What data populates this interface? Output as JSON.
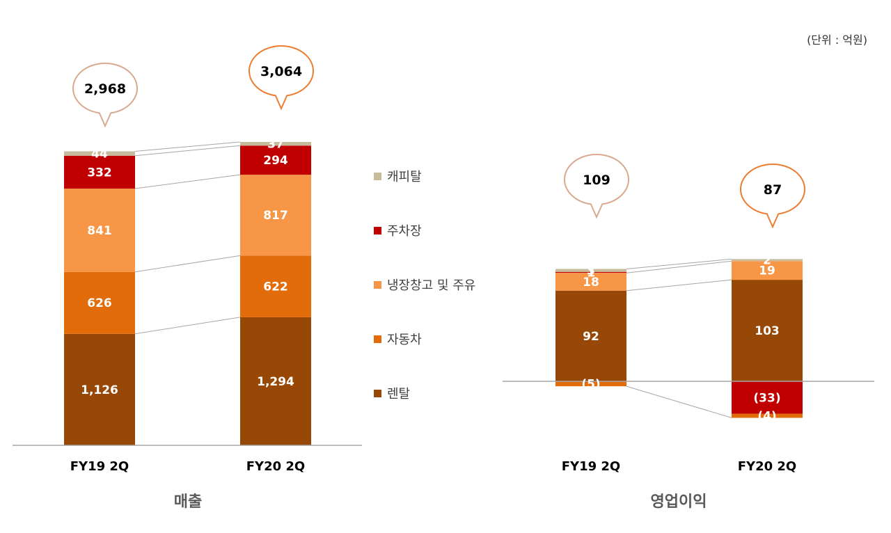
{
  "unit_label": "(단위 : 억원)",
  "colors": {
    "capital": "#c6bc9c",
    "parking": "#c00000",
    "fridge": "#f79646",
    "auto": "#e36c0a",
    "rental": "#984806",
    "bubble_prev": "#d9a98f",
    "bubble_curr": "#ed7d31",
    "axis": "#a6a6a6",
    "connector": "#a6a6a6"
  },
  "legend": [
    {
      "key": "capital",
      "label": "캐피탈"
    },
    {
      "key": "parking",
      "label": "주차장"
    },
    {
      "key": "fridge",
      "label": "냉장창고 및 주유"
    },
    {
      "key": "auto",
      "label": "자동차"
    },
    {
      "key": "rental",
      "label": "렌탈"
    }
  ],
  "chart_data": [
    {
      "type": "bar",
      "stacked": true,
      "title": "매출",
      "categories": [
        "FY19 2Q",
        "FY20 2Q"
      ],
      "totals": [
        "2,968",
        "3,064"
      ],
      "series": [
        {
          "key": "rental",
          "name": "렌탈",
          "values": [
            1126,
            1294
          ],
          "labels": [
            "1,126",
            "1,294"
          ]
        },
        {
          "key": "auto",
          "name": "자동차",
          "values": [
            626,
            622
          ],
          "labels": [
            "626",
            "622"
          ]
        },
        {
          "key": "fridge",
          "name": "냉장창고 및 주유",
          "values": [
            841,
            817
          ],
          "labels": [
            "841",
            "817"
          ]
        },
        {
          "key": "parking",
          "name": "주차장",
          "values": [
            332,
            294
          ],
          "labels": [
            "332",
            "294"
          ]
        },
        {
          "key": "capital",
          "name": "캐피탈",
          "values": [
            44,
            37
          ],
          "labels": [
            "44",
            "37"
          ]
        }
      ]
    },
    {
      "type": "bar",
      "stacked": true,
      "title": "영업이익",
      "categories": [
        "FY19 2Q",
        "FY20 2Q"
      ],
      "totals": [
        "109",
        "87"
      ],
      "series": [
        {
          "key": "rental",
          "name": "렌탈",
          "values": [
            92,
            103
          ],
          "labels": [
            "92",
            "103"
          ]
        },
        {
          "key": "fridge",
          "name": "냉장창고 및 주유",
          "values": [
            18,
            19
          ],
          "labels": [
            "18",
            "19"
          ]
        },
        {
          "key": "parking",
          "name": "주차장",
          "values": [
            1,
            -33
          ],
          "labels": [
            "1",
            "(33)"
          ]
        },
        {
          "key": "capital",
          "name": "캐피탈",
          "values": [
            3,
            2
          ],
          "labels": [
            "3",
            "2"
          ]
        },
        {
          "key": "auto",
          "name": "자동차",
          "values": [
            -5,
            -4
          ],
          "labels": [
            "(5)",
            "(4)"
          ]
        }
      ]
    }
  ]
}
